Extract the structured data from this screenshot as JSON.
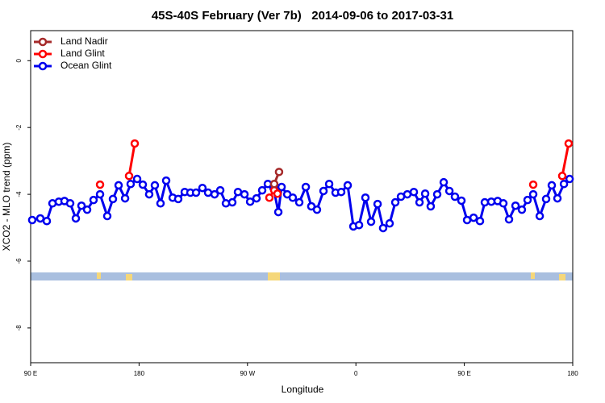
{
  "chart_data": {
    "type": "line",
    "title": "45S-40S February (Ver 7b)   2014-09-06 to 2017-03-31",
    "x_label": "Longitude",
    "y_label": "XCO2 - MLO trend (ppm)",
    "xlim": [
      90,
      540
    ],
    "ylim": [
      -9.04,
      0.9
    ],
    "xticks": [
      {
        "value": 90,
        "label": "90 E"
      },
      180,
      {
        "value": 270,
        "label": "90 W"
      },
      {
        "value": 360,
        "label": "0"
      },
      {
        "value": 450,
        "label": "90 E"
      },
      {
        "value": 540,
        "label": "180"
      }
    ],
    "yticks": [
      0,
      -2,
      -4,
      -6,
      -8
    ],
    "legend": "top-left",
    "series": [
      {
        "name": "Land Nadir",
        "color": "#a52a2a",
        "x": [
          292.2,
          296.2
        ],
        "values": [
          -3.69,
          -3.33
        ]
      },
      {
        "name": "Land Glint",
        "color": "#ff0000",
        "x": [
          147.6,
          160,
          171.7,
          176.4,
          250,
          288.2,
          292.2,
          294.9,
          400,
          507.2,
          520,
          531.3,
          536.6
        ],
        "values": [
          -3.71,
          null,
          -3.45,
          -2.48,
          null,
          -4.1,
          -3.88,
          -3.98,
          null,
          -3.71,
          null,
          -3.45,
          -2.48
        ]
      },
      {
        "name": "Ocean Glint",
        "color": "#0000ee",
        "x": [
          91.3,
          98,
          103.4,
          108.1,
          113.4,
          118.1,
          122.8,
          127.5,
          132.2,
          136.9,
          142.2,
          147.6,
          153.6,
          158.3,
          163,
          168.4,
          173,
          178.4,
          183.1,
          188.4,
          193.1,
          197.8,
          202.5,
          207.9,
          212.5,
          217.9,
          222.6,
          227.3,
          232.6,
          237.3,
          242.7,
          247.4,
          252.1,
          257.4,
          262.1,
          267.5,
          272.2,
          277.5,
          282.2,
          286.9,
          291.6,
          295.6,
          298.3,
          303,
          307.6,
          313,
          318.4,
          323,
          327.7,
          333.1,
          337.8,
          343.1,
          347.8,
          353.2,
          357.9,
          362.6,
          367.9,
          372.6,
          378,
          382.6,
          388,
          392.7,
          397.4,
          402.7,
          408.1,
          412.8,
          417.5,
          422.1,
          427.5,
          432.9,
          437.6,
          442.2,
          447.6,
          452.3,
          457.7,
          463,
          467,
          472.4,
          477.7,
          482.4,
          487.1,
          492.5,
          497.8,
          502.5,
          507.2,
          512.6,
          517.9,
          522.6,
          527.3,
          532.7,
          537.4
        ],
        "values": [
          -4.77,
          -4.72,
          -4.8,
          -4.27,
          -4.22,
          -4.2,
          -4.27,
          -4.72,
          -4.34,
          -4.46,
          -4.17,
          -4.0,
          -4.65,
          -4.14,
          -3.73,
          -4.12,
          -3.69,
          -3.54,
          -3.71,
          -4.0,
          -3.73,
          -4.27,
          -3.59,
          -4.1,
          -4.14,
          -3.93,
          -3.95,
          -3.95,
          -3.81,
          -3.95,
          -4.0,
          -3.88,
          -4.27,
          -4.24,
          -3.93,
          -4.0,
          -4.22,
          -4.12,
          -3.88,
          -3.69,
          -3.81,
          -4.53,
          -3.78,
          -4.0,
          -4.1,
          -4.24,
          -3.78,
          -4.36,
          -4.46,
          -3.9,
          -3.69,
          -3.95,
          -3.93,
          -3.73,
          -4.96,
          -4.92,
          -4.1,
          -4.82,
          -4.29,
          -5.01,
          -4.87,
          -4.24,
          -4.07,
          -4.0,
          -3.93,
          -4.24,
          -3.98,
          -4.36,
          -4.0,
          -3.64,
          -3.9,
          -4.07,
          -4.19,
          -4.77,
          -4.7,
          -4.8,
          -4.24,
          -4.22,
          -4.2,
          -4.27,
          -4.75,
          -4.34,
          -4.46,
          -4.17,
          -4.0,
          -4.65,
          -4.14,
          -3.73,
          -4.12,
          -3.69,
          -3.54
        ]
      }
    ]
  }
}
